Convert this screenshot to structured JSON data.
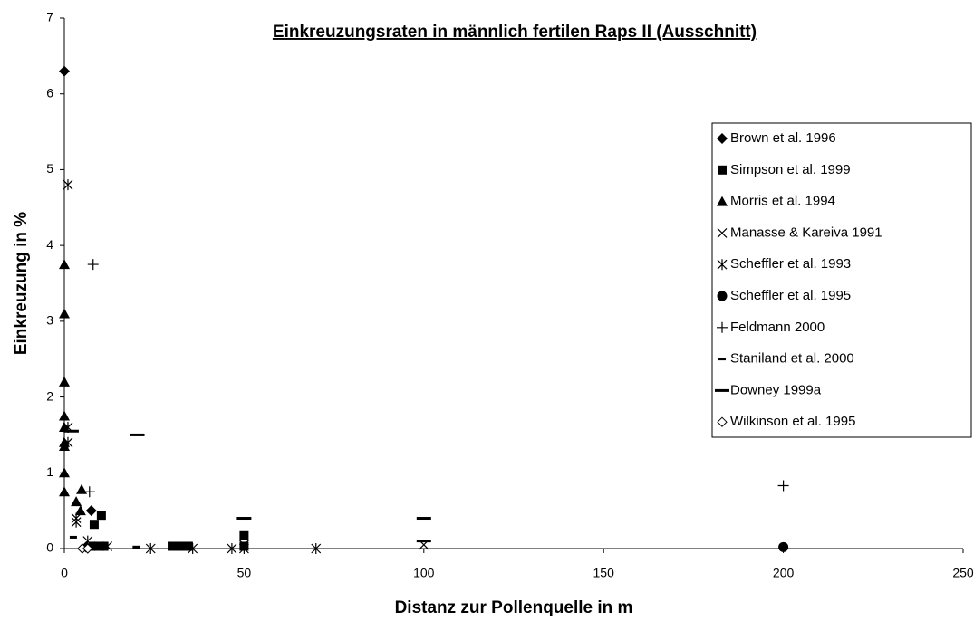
{
  "chart_data": {
    "type": "scatter",
    "title": "Einkreuzungsraten in männlich fertilen Raps II (Ausschnitt)",
    "x_label": "Distanz zur Pollenquelle in m",
    "y_label": "Einkreuzung in %",
    "xlim": [
      0,
      250
    ],
    "xticks": [
      0,
      50,
      100,
      150,
      200,
      250
    ],
    "ylim": [
      0,
      7
    ],
    "yticks": [
      0,
      1,
      2,
      3,
      4,
      5,
      6,
      7
    ],
    "legend": "right",
    "series": [
      {
        "name": "Brown et al. 1996",
        "color": "#000000",
        "marker": "diamond",
        "x": [
          0,
          7.5,
          6
        ],
        "values": [
          6.3,
          0.5,
          0.02
        ]
      },
      {
        "name": "Simpson et al. 1999",
        "color": "#000000",
        "marker": "square",
        "x": [
          10.3,
          8.3,
          8,
          9.5,
          11,
          30,
          32.5,
          34.5,
          50,
          50
        ],
        "values": [
          0.44,
          0.32,
          0.03,
          0.03,
          0.03,
          0.03,
          0.03,
          0.03,
          0.17,
          0.03
        ]
      },
      {
        "name": "Morris et al. 1994",
        "color": "#000000",
        "marker": "triangle",
        "x": [
          0,
          0,
          0,
          0,
          0,
          0,
          0,
          0,
          0,
          3.3,
          4.8,
          4.5
        ],
        "values": [
          3.75,
          3.1,
          2.2,
          1.75,
          1.6,
          1.4,
          1.35,
          1.0,
          0.75,
          0.62,
          0.78,
          0.5
        ]
      },
      {
        "name": "Manasse & Kareiva 1991",
        "color": "#000000",
        "marker": "x",
        "x": [
          7.3,
          12,
          50,
          100
        ],
        "values": [
          0.03,
          0.03,
          0.05,
          0.05
        ]
      },
      {
        "name": "Scheffler et al. 1993",
        "color": "#000000",
        "marker": "asterisk",
        "x": [
          1,
          1,
          1,
          3.3,
          3.3,
          6.5,
          24,
          35.7,
          46.6,
          50,
          70
        ],
        "values": [
          4.8,
          1.6,
          1.4,
          0.4,
          0.35,
          0.1,
          0,
          0,
          0,
          0,
          0
        ]
      },
      {
        "name": "Scheffler et al. 1995",
        "color": "#000000",
        "marker": "circle",
        "x": [
          200
        ],
        "values": [
          0.02
        ]
      },
      {
        "name": "Feldmann 2000",
        "color": "#000000",
        "marker": "plus",
        "x": [
          8,
          7,
          200
        ],
        "values": [
          3.75,
          0.75,
          0.83
        ]
      },
      {
        "name": "Staniland et al. 2000",
        "color": "#000000",
        "marker": "shortdash",
        "x": [
          2.5,
          20
        ],
        "values": [
          0.15,
          0.02
        ]
      },
      {
        "name": "Downey 1999a",
        "color": "#000000",
        "marker": "longdash",
        "x": [
          2,
          20.3,
          50,
          100,
          100
        ],
        "values": [
          1.55,
          1.5,
          0.4,
          0.4,
          0.1
        ]
      },
      {
        "name": "Wilkinson et al. 1995",
        "color": "#000000",
        "marker": "opendiamond",
        "x": [
          5,
          6.5
        ],
        "values": [
          0,
          0
        ]
      }
    ]
  }
}
